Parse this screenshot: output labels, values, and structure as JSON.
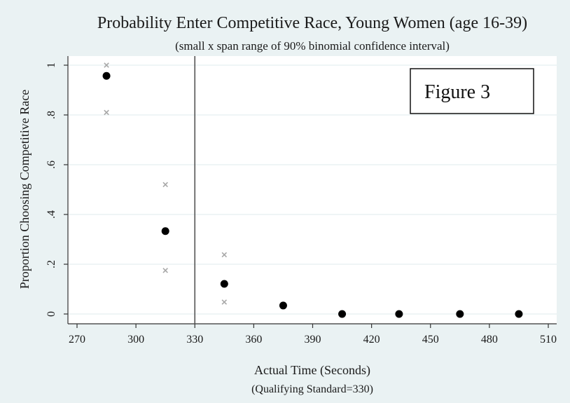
{
  "chart_data": {
    "type": "scatter",
    "title": "Probability Enter Competitive Race, Young Women (age 16-39)",
    "subtitle": "(small x span range of 90% binomial confidence interval)",
    "xlabel": "Actual Time (Seconds)",
    "xlabel_note": "(Qualifying Standard=330)",
    "ylabel": "Proportion Choosing Competitive Race",
    "annotation": "Figure 3",
    "xlim": [
      270,
      510
    ],
    "ylim": [
      0,
      1
    ],
    "x_ticks": [
      "270",
      "300",
      "330",
      "360",
      "390",
      "420",
      "450",
      "480",
      "510"
    ],
    "y_ticks": [
      "0",
      ".2",
      ".4",
      ".6",
      ".8",
      "1"
    ],
    "reference_line_x": 330,
    "grid": true,
    "points": [
      {
        "x": 285,
        "y": 0.957
      },
      {
        "x": 315,
        "y": 0.333
      },
      {
        "x": 345,
        "y": 0.121
      },
      {
        "x": 375,
        "y": 0.034
      },
      {
        "x": 405,
        "y": 0.0
      },
      {
        "x": 434,
        "y": 0.0
      },
      {
        "x": 465,
        "y": 0.0
      },
      {
        "x": 495,
        "y": 0.0
      }
    ],
    "ci_markers": [
      {
        "x": 285,
        "y": 1.0
      },
      {
        "x": 285,
        "y": 0.81
      },
      {
        "x": 315,
        "y": 0.52
      },
      {
        "x": 315,
        "y": 0.175
      },
      {
        "x": 345,
        "y": 0.238
      },
      {
        "x": 345,
        "y": 0.048
      }
    ],
    "colors": {
      "background": "#eaf2f3",
      "plot_area": "#ffffff",
      "point": "#000000",
      "ci_marker": "#a8a8a8",
      "reference_line": "#555555"
    }
  }
}
